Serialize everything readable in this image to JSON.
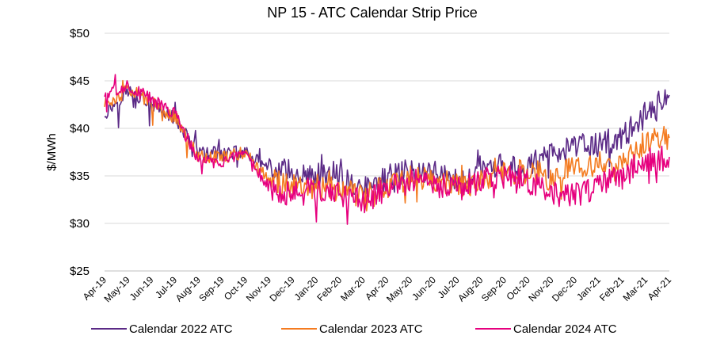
{
  "chart_data": {
    "type": "line",
    "title": "NP 15 - ATC Calendar Strip Price",
    "xlabel": "",
    "ylabel": "$/MWh",
    "ylim": [
      25,
      50
    ],
    "yticks": [
      25,
      30,
      35,
      40,
      45,
      50
    ],
    "ytick_labels": [
      "$25",
      "$30",
      "$35",
      "$40",
      "$45",
      "$50"
    ],
    "grid": "horizontal",
    "legend_position": "bottom",
    "categories": [
      "Apr-19",
      "May-19",
      "Jun-19",
      "Jul-19",
      "Aug-19",
      "Sep-19",
      "Oct-19",
      "Nov-19",
      "Dec-19",
      "Jan-20",
      "Feb-20",
      "Mar-20",
      "Apr-20",
      "May-20",
      "Jun-20",
      "Jul-20",
      "Aug-20",
      "Sep-20",
      "Oct-20",
      "Nov-20",
      "Dec-20",
      "Jan-21",
      "Feb-21",
      "Mar-21",
      "Apr-21"
    ],
    "series": [
      {
        "name": "Calendar 2022 ATC",
        "color": "#5b2a86",
        "values": [
          41.5,
          44.0,
          42.5,
          41.0,
          37.5,
          37.3,
          37.6,
          35.5,
          35.5,
          35.0,
          34.8,
          33.5,
          34.8,
          35.6,
          35.5,
          34.5,
          35.8,
          36.0,
          36.0,
          37.5,
          38.0,
          38.3,
          39.0,
          41.5,
          43.5
        ]
      },
      {
        "name": "Calendar 2023 ATC",
        "color": "#f47b20",
        "values": [
          42.5,
          44.0,
          42.8,
          41.0,
          37.0,
          37.0,
          37.5,
          34.5,
          33.8,
          34.0,
          33.5,
          32.8,
          34.0,
          34.8,
          34.8,
          33.8,
          34.8,
          35.5,
          35.5,
          35.0,
          35.8,
          36.3,
          36.5,
          38.5,
          39.0
        ]
      },
      {
        "name": "Calendar 2024 ATC",
        "color": "#e6007e",
        "values": [
          43.5,
          44.5,
          43.0,
          41.5,
          36.5,
          36.5,
          37.0,
          33.8,
          33.0,
          33.5,
          33.0,
          32.3,
          33.5,
          34.5,
          34.0,
          33.5,
          34.5,
          35.0,
          34.5,
          33.0,
          33.0,
          34.0,
          35.0,
          36.5,
          37.0
        ]
      }
    ]
  }
}
